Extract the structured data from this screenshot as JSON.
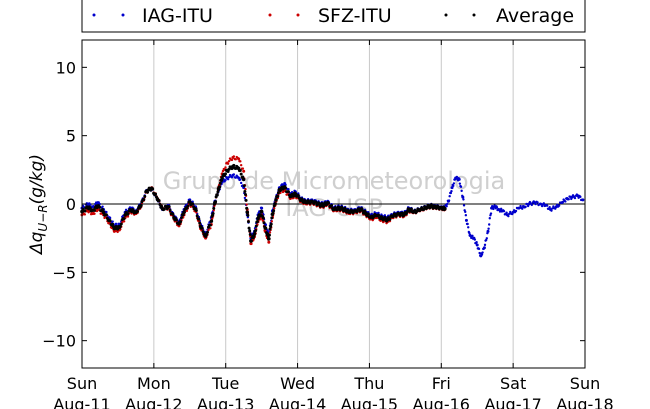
{
  "chart_data": {
    "type": "scatter",
    "title": "",
    "ylabel": "Δq_{U-R}(g/kg)",
    "ylabel_main": "Δq",
    "ylabel_sub": "U−R",
    "ylabel_unit": "(g/kg)",
    "xlabel": "",
    "ylim": [
      -12,
      12
    ],
    "yticks": [
      -10,
      -5,
      0,
      5,
      10
    ],
    "ytick_labels": [
      "−10",
      "−5",
      "0",
      "5",
      "10"
    ],
    "xlim": [
      0,
      7
    ],
    "xticks": [
      0,
      1,
      2,
      3,
      4,
      5,
      6,
      7
    ],
    "xtick_labels": [
      [
        "Sun",
        "Aug-11"
      ],
      [
        "Mon",
        "Aug-12"
      ],
      [
        "Tue",
        "Aug-13"
      ],
      [
        "Wed",
        "Aug-14"
      ],
      [
        "Thu",
        "Aug-15"
      ],
      [
        "Fri",
        "Aug-16"
      ],
      [
        "Sat",
        "Aug-17"
      ],
      [
        "Sun",
        "Aug-18"
      ]
    ],
    "x_units": "days since Aug-11 00:00",
    "grid": "vertical",
    "zero_line": true,
    "legend": "top",
    "watermark": [
      "Grupo de Micrometeorologia",
      "IAG-USP"
    ],
    "series": [
      {
        "name": "IAG-ITU",
        "color": "#0000cc",
        "x": [
          0.0,
          0.08,
          0.15,
          0.22,
          0.3,
          0.38,
          0.45,
          0.52,
          0.6,
          0.68,
          0.75,
          0.82,
          0.9,
          0.97,
          1.05,
          1.12,
          1.2,
          1.28,
          1.35,
          1.42,
          1.5,
          1.58,
          1.65,
          1.72,
          1.8,
          1.85,
          1.9,
          1.95,
          2.02,
          2.1,
          2.18,
          2.25,
          2.3,
          2.35,
          2.4,
          2.45,
          2.5,
          2.55,
          2.6,
          2.65,
          2.7,
          2.75,
          2.82,
          2.9,
          2.97,
          3.05,
          3.12,
          3.2,
          3.28,
          3.35,
          3.42,
          3.5,
          3.58,
          3.65,
          3.72,
          3.8,
          3.88,
          3.95,
          4.02,
          4.1,
          4.18,
          4.25,
          4.32,
          4.4,
          4.48,
          4.55,
          4.62,
          4.7,
          4.78,
          4.85,
          4.92,
          5.0,
          5.05,
          5.1,
          5.15,
          5.2,
          5.25,
          5.3,
          5.35,
          5.4,
          5.45,
          5.5,
          5.55,
          5.6,
          5.65,
          5.7,
          5.75,
          5.8,
          5.85,
          5.92,
          6.0,
          6.08,
          6.15,
          6.22,
          6.3,
          6.38,
          6.45,
          6.52,
          6.6,
          6.68,
          6.75,
          6.82,
          6.9,
          6.97
        ],
        "y": [
          -0.3,
          0.0,
          -0.2,
          0.1,
          -0.4,
          -1.0,
          -1.6,
          -1.5,
          -0.6,
          -0.3,
          -0.5,
          0.0,
          1.0,
          1.1,
          0.3,
          -0.4,
          -0.1,
          -0.9,
          -1.3,
          -0.4,
          0.3,
          -0.2,
          -1.5,
          -2.2,
          -1.0,
          0.2,
          1.0,
          1.6,
          1.9,
          2.1,
          1.9,
          1.2,
          -0.8,
          -2.5,
          -2.0,
          -0.8,
          -0.3,
          -1.5,
          -2.3,
          -0.5,
          0.4,
          1.2,
          1.5,
          0.7,
          0.9,
          0.4,
          0.2,
          0.3,
          0.1,
          0.0,
          0.2,
          -0.3,
          -0.2,
          -0.3,
          -0.5,
          -0.4,
          -0.3,
          -0.6,
          -0.8,
          -0.7,
          -0.9,
          -1.0,
          -0.8,
          -0.6,
          -0.7,
          -0.3,
          -0.5,
          -0.4,
          -0.2,
          -0.1,
          -0.2,
          -0.2,
          -0.3,
          0.2,
          1.2,
          1.9,
          1.8,
          0.5,
          -1.2,
          -2.3,
          -2.5,
          -3.0,
          -3.8,
          -3.2,
          -2.0,
          -0.3,
          -0.2,
          -0.4,
          -0.5,
          -0.8,
          -0.6,
          -0.3,
          -0.2,
          0.0,
          0.1,
          0.0,
          -0.1,
          -0.4,
          -0.2,
          0.1,
          0.4,
          0.5,
          0.6,
          0.3
        ]
      },
      {
        "name": "SFZ-ITU",
        "color": "#cc0000",
        "x": [
          0.0,
          0.08,
          0.15,
          0.22,
          0.3,
          0.38,
          0.45,
          0.52,
          0.6,
          0.68,
          0.75,
          0.82,
          0.9,
          0.97,
          1.05,
          1.12,
          1.2,
          1.28,
          1.35,
          1.42,
          1.5,
          1.58,
          1.65,
          1.72,
          1.8,
          1.85,
          1.9,
          1.95,
          2.02,
          2.1,
          2.18,
          2.25,
          2.3,
          2.35,
          2.4,
          2.45,
          2.5,
          2.55,
          2.6,
          2.65,
          2.7,
          2.75,
          2.82,
          2.9,
          2.97,
          3.05,
          3.12,
          3.2,
          3.28,
          3.35,
          3.42,
          3.5,
          3.58,
          3.65,
          3.72,
          3.8,
          3.88,
          3.95,
          4.02,
          4.1,
          4.18,
          4.25,
          4.32,
          4.4,
          4.48,
          4.55,
          4.62,
          4.7,
          4.78,
          4.85,
          4.92,
          5.0,
          5.05
        ],
        "y": [
          -0.8,
          -0.5,
          -0.7,
          -0.4,
          -0.8,
          -1.4,
          -2.0,
          -1.9,
          -1.0,
          -0.6,
          -0.7,
          -0.2,
          0.9,
          1.2,
          0.4,
          -0.3,
          -0.3,
          -1.1,
          -1.6,
          -0.8,
          0.0,
          -0.5,
          -1.8,
          -2.5,
          -1.5,
          0.0,
          1.2,
          2.2,
          3.0,
          3.4,
          3.3,
          2.4,
          -0.4,
          -2.9,
          -2.4,
          -1.3,
          -0.8,
          -2.0,
          -2.8,
          -1.0,
          0.2,
          0.9,
          1.0,
          0.4,
          0.6,
          0.2,
          0.0,
          0.1,
          -0.1,
          -0.2,
          0.0,
          -0.5,
          -0.4,
          -0.5,
          -0.7,
          -0.6,
          -0.5,
          -0.8,
          -1.1,
          -1.0,
          -1.2,
          -1.3,
          -1.0,
          -0.8,
          -0.9,
          -0.5,
          -0.6,
          -0.5,
          -0.3,
          -0.2,
          -0.3,
          -0.3,
          -0.4
        ]
      },
      {
        "name": "Average",
        "color": "#000000",
        "x": [
          0.0,
          0.08,
          0.15,
          0.22,
          0.3,
          0.38,
          0.45,
          0.52,
          0.6,
          0.68,
          0.75,
          0.82,
          0.9,
          0.97,
          1.05,
          1.12,
          1.2,
          1.28,
          1.35,
          1.42,
          1.5,
          1.58,
          1.65,
          1.72,
          1.8,
          1.85,
          1.9,
          1.95,
          2.02,
          2.1,
          2.18,
          2.25,
          2.3,
          2.35,
          2.4,
          2.45,
          2.5,
          2.55,
          2.6,
          2.65,
          2.7,
          2.75,
          2.82,
          2.9,
          2.97,
          3.05,
          3.12,
          3.2,
          3.28,
          3.35,
          3.42,
          3.5,
          3.58,
          3.65,
          3.72,
          3.8,
          3.88,
          3.95,
          4.02,
          4.1,
          4.18,
          4.25,
          4.32,
          4.4,
          4.48,
          4.55,
          4.62,
          4.7,
          4.78,
          4.85,
          4.92,
          5.0,
          5.05
        ],
        "y": [
          -0.55,
          -0.25,
          -0.45,
          -0.15,
          -0.6,
          -1.2,
          -1.8,
          -1.7,
          -0.8,
          -0.45,
          -0.6,
          -0.1,
          0.95,
          1.15,
          0.35,
          -0.35,
          -0.2,
          -1.0,
          -1.45,
          -0.6,
          0.15,
          -0.35,
          -1.65,
          -2.35,
          -1.25,
          0.1,
          1.1,
          1.9,
          2.45,
          2.75,
          2.6,
          1.8,
          -0.6,
          -2.7,
          -2.2,
          -1.05,
          -0.55,
          -1.75,
          -2.55,
          -0.75,
          0.3,
          1.05,
          1.25,
          0.55,
          0.75,
          0.3,
          0.1,
          0.2,
          0.0,
          -0.1,
          0.1,
          -0.4,
          -0.3,
          -0.4,
          -0.6,
          -0.5,
          -0.4,
          -0.7,
          -0.95,
          -0.85,
          -1.05,
          -1.15,
          -0.9,
          -0.7,
          -0.8,
          -0.4,
          -0.55,
          -0.45,
          -0.25,
          -0.15,
          -0.25,
          -0.25,
          -0.35
        ]
      }
    ]
  }
}
